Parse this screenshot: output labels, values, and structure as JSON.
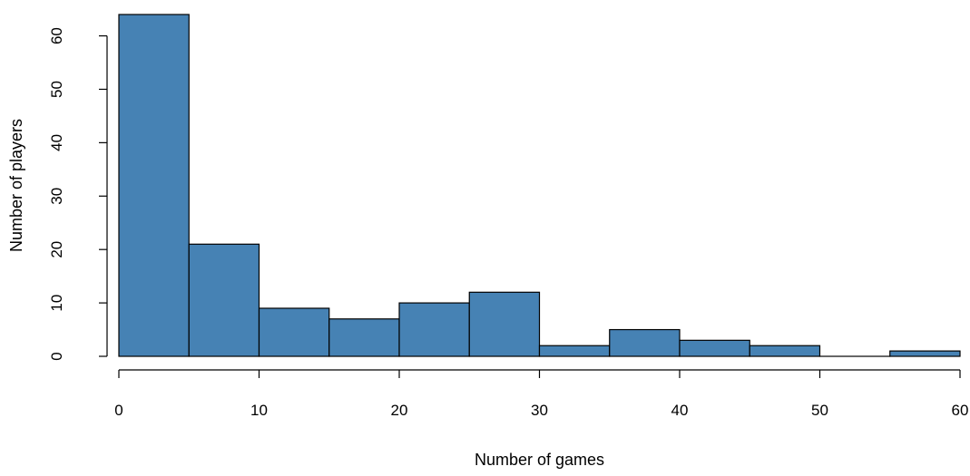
{
  "chart_data": {
    "type": "bar",
    "subtype": "histogram",
    "title": "",
    "xlabel": "Number of games",
    "ylabel": "Number of players",
    "bins": [
      {
        "start": 0,
        "end": 5,
        "count": 64
      },
      {
        "start": 5,
        "end": 10,
        "count": 21
      },
      {
        "start": 10,
        "end": 15,
        "count": 9
      },
      {
        "start": 15,
        "end": 20,
        "count": 7
      },
      {
        "start": 20,
        "end": 25,
        "count": 10
      },
      {
        "start": 25,
        "end": 30,
        "count": 12
      },
      {
        "start": 30,
        "end": 35,
        "count": 2
      },
      {
        "start": 35,
        "end": 40,
        "count": 5
      },
      {
        "start": 40,
        "end": 45,
        "count": 3
      },
      {
        "start": 45,
        "end": 50,
        "count": 2
      },
      {
        "start": 50,
        "end": 55,
        "count": 0
      },
      {
        "start": 55,
        "end": 60,
        "count": 1
      }
    ],
    "xlim": [
      0,
      60
    ],
    "ylim": [
      0,
      64
    ],
    "xticks": [
      "0",
      "10",
      "20",
      "30",
      "40",
      "50",
      "60"
    ],
    "yticks": [
      "0",
      "10",
      "20",
      "30",
      "40",
      "50",
      "60"
    ],
    "grid": false,
    "legend": "none",
    "bar_color": "#4682b4",
    "edge_color": "#000000"
  }
}
